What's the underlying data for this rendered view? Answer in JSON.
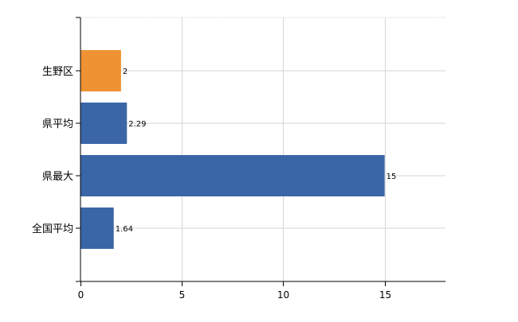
{
  "chart_data": {
    "type": "bar",
    "orientation": "horizontal",
    "categories": [
      "生野区",
      "県平均",
      "県最大",
      "全国平均"
    ],
    "values": [
      2,
      2.29,
      15,
      1.64
    ],
    "value_labels": [
      "2",
      "2.29",
      "15",
      "1.64"
    ],
    "bar_colors": [
      "#EE9233",
      "#3A66A7",
      "#3A66A7",
      "#3A66A7"
    ],
    "xlim": [
      0,
      18
    ],
    "xticks": [
      0,
      5,
      10,
      15
    ],
    "xtick_labels": [
      "0",
      "5",
      "10",
      "15"
    ],
    "grid": true,
    "title": "",
    "xlabel": "",
    "ylabel": ""
  }
}
